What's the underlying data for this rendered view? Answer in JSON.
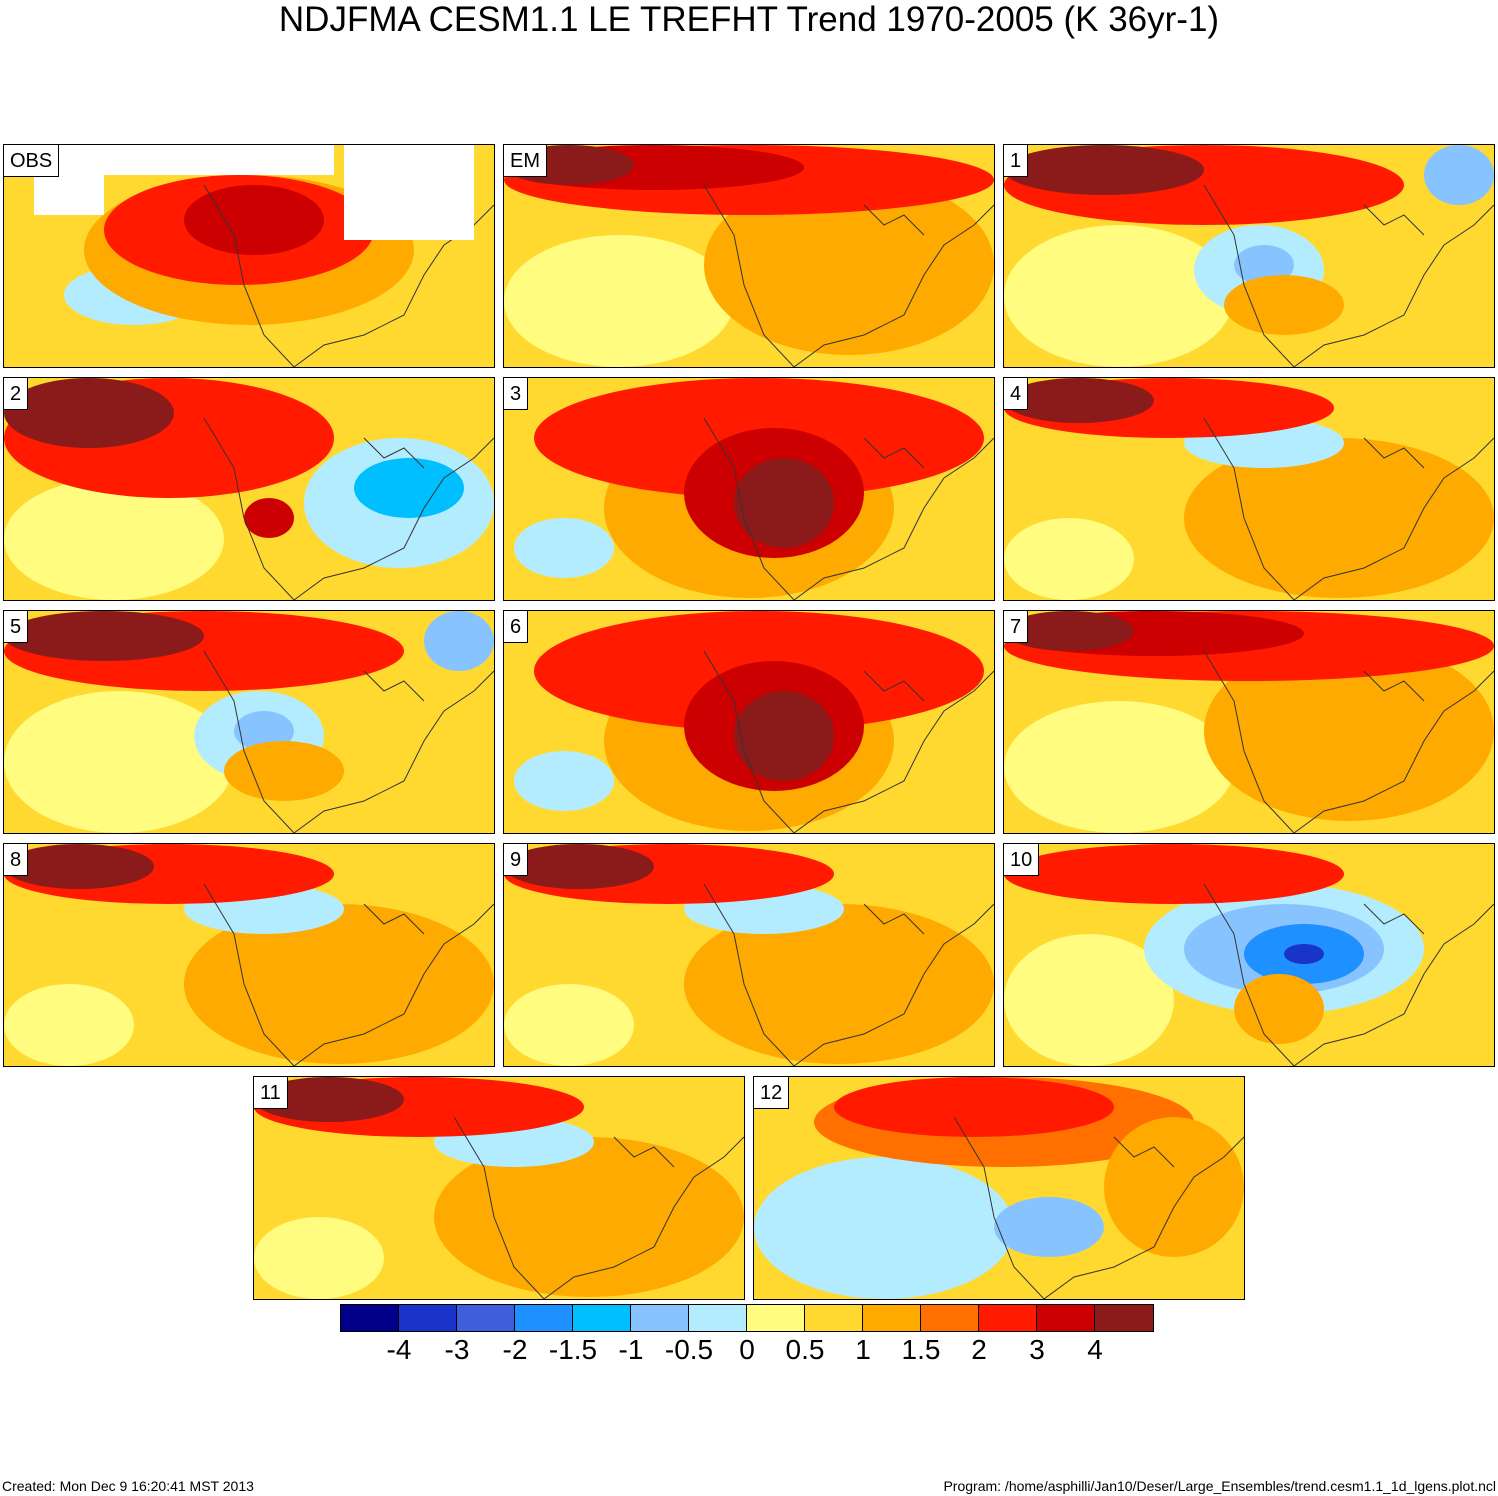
{
  "title": "NDJFMA CESM1.1 LE TREFHT Trend 1970-2005 (K 36yr-1)",
  "panels": [
    {
      "label": "OBS",
      "pattern": "obs"
    },
    {
      "label": "EM",
      "pattern": "warm-north"
    },
    {
      "label": "1",
      "pattern": "cool-west"
    },
    {
      "label": "2",
      "pattern": "cool-east"
    },
    {
      "label": "3",
      "pattern": "hot-center"
    },
    {
      "label": "4",
      "pattern": "mild"
    },
    {
      "label": "5",
      "pattern": "cool-west"
    },
    {
      "label": "6",
      "pattern": "hot-center"
    },
    {
      "label": "7",
      "pattern": "warm-north"
    },
    {
      "label": "8",
      "pattern": "mild"
    },
    {
      "label": "9",
      "pattern": "mild"
    },
    {
      "label": "10",
      "pattern": "cold-center"
    },
    {
      "label": "11",
      "pattern": "mild"
    },
    {
      "label": "12",
      "pattern": "cool-south"
    }
  ],
  "colorbar": {
    "colors": [
      "#00008b",
      "#1a33c8",
      "#3e5fdb",
      "#1e90ff",
      "#00bfff",
      "#87c4ff",
      "#b4ecff",
      "#fffc80",
      "#ffd92f",
      "#ffaa00",
      "#ff7000",
      "#ff1a00",
      "#cc0000",
      "#8b1a1a"
    ],
    "ticks": [
      "-4",
      "-3",
      "-2",
      "-1.5",
      "-1",
      "-0.5",
      "0",
      "0.5",
      "1",
      "1.5",
      "2",
      "3",
      "4"
    ]
  },
  "footer": {
    "created": "Created: Mon Dec  9 16:20:41 MST 2013",
    "program": "Program: /home/asphilli/Jan10/Deser/Large_Ensembles/trend.cesm1.1_1d_lgens.plot.ncl"
  }
}
